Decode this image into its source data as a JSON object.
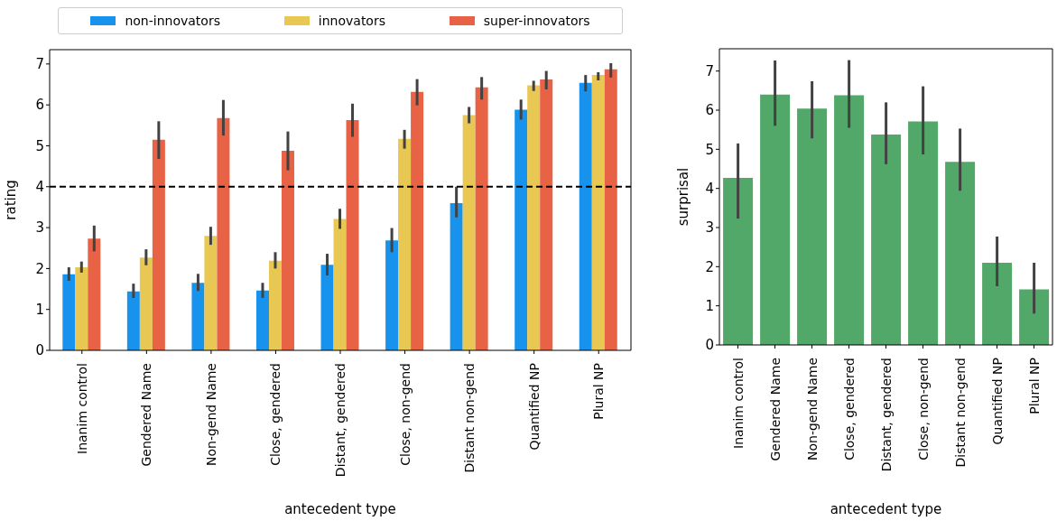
{
  "chart_data": [
    {
      "type": "bar",
      "xlabel": "antecedent type",
      "ylabel": "rating",
      "legend": "top",
      "categories": [
        "Inanim control",
        "Gendered Name",
        "Non-gend Name",
        "Close, gendered",
        "Distant, gendered",
        "Close, non-gend",
        "Distant non-gend",
        "Quantified NP",
        "Plural NP"
      ],
      "series": [
        {
          "name": "non-innovators",
          "color": "#1793ed",
          "values": [
            1.86,
            1.44,
            1.65,
            1.46,
            2.09,
            2.69,
            3.6,
            5.88,
            6.54
          ],
          "errors": [
            [
              1.7,
              2.03
            ],
            [
              1.28,
              1.63
            ],
            [
              1.45,
              1.87
            ],
            [
              1.28,
              1.65
            ],
            [
              1.83,
              2.36
            ],
            [
              2.4,
              2.99
            ],
            [
              3.25,
              4.0
            ],
            [
              5.64,
              6.13
            ],
            [
              6.33,
              6.73
            ]
          ]
        },
        {
          "name": "innovators",
          "color": "#e8c752",
          "values": [
            2.03,
            2.27,
            2.8,
            2.19,
            3.21,
            5.17,
            5.75,
            6.48,
            6.73
          ],
          "errors": [
            [
              1.9,
              2.17
            ],
            [
              2.08,
              2.47
            ],
            [
              2.58,
              3.02
            ],
            [
              2.0,
              2.4
            ],
            [
              2.97,
              3.46
            ],
            [
              4.93,
              5.39
            ],
            [
              5.55,
              5.95
            ],
            [
              6.34,
              6.59
            ],
            [
              6.6,
              6.8
            ]
          ]
        },
        {
          "name": "super-innovators",
          "color": "#e86246",
          "values": [
            2.73,
            5.15,
            5.68,
            4.88,
            5.63,
            6.32,
            6.43,
            6.62,
            6.87
          ],
          "errors": [
            [
              2.42,
              3.05
            ],
            [
              4.68,
              5.6
            ],
            [
              5.25,
              6.12
            ],
            [
              4.4,
              5.35
            ],
            [
              5.22,
              6.03
            ],
            [
              5.99,
              6.63
            ],
            [
              6.13,
              6.68
            ],
            [
              6.38,
              6.83
            ],
            [
              6.67,
              7.02
            ]
          ]
        }
      ],
      "ylim": [
        0,
        7.35
      ],
      "yticks": [
        0,
        1,
        2,
        3,
        4,
        5,
        6,
        7
      ],
      "ref_lines": [
        {
          "axis": "y",
          "value": 4,
          "color": "#000000",
          "line_style": "dashed"
        }
      ]
    },
    {
      "type": "bar",
      "xlabel": "antecedent type",
      "ylabel": "surprisal",
      "categories": [
        "Inanim control",
        "Gendered Name",
        "Non-gend Name",
        "Close, gendered",
        "Distant, gendered",
        "Close, non-gend",
        "Distant non-gend",
        "Quantified NP",
        "Plural NP"
      ],
      "values": [
        4.27,
        6.4,
        6.04,
        6.38,
        5.38,
        5.71,
        4.68,
        2.1,
        1.42
      ],
      "color": "#52a868",
      "errors": [
        [
          3.23,
          5.15
        ],
        [
          5.6,
          7.27
        ],
        [
          5.28,
          6.74
        ],
        [
          5.55,
          7.28
        ],
        [
          4.62,
          6.2
        ],
        [
          4.87,
          6.61
        ],
        [
          3.94,
          5.53
        ],
        [
          1.5,
          2.77
        ],
        [
          0.8,
          2.1
        ]
      ],
      "ylim": [
        0,
        7.57
      ],
      "yticks": [
        0,
        1,
        2,
        3,
        4,
        5,
        6,
        7
      ]
    }
  ]
}
